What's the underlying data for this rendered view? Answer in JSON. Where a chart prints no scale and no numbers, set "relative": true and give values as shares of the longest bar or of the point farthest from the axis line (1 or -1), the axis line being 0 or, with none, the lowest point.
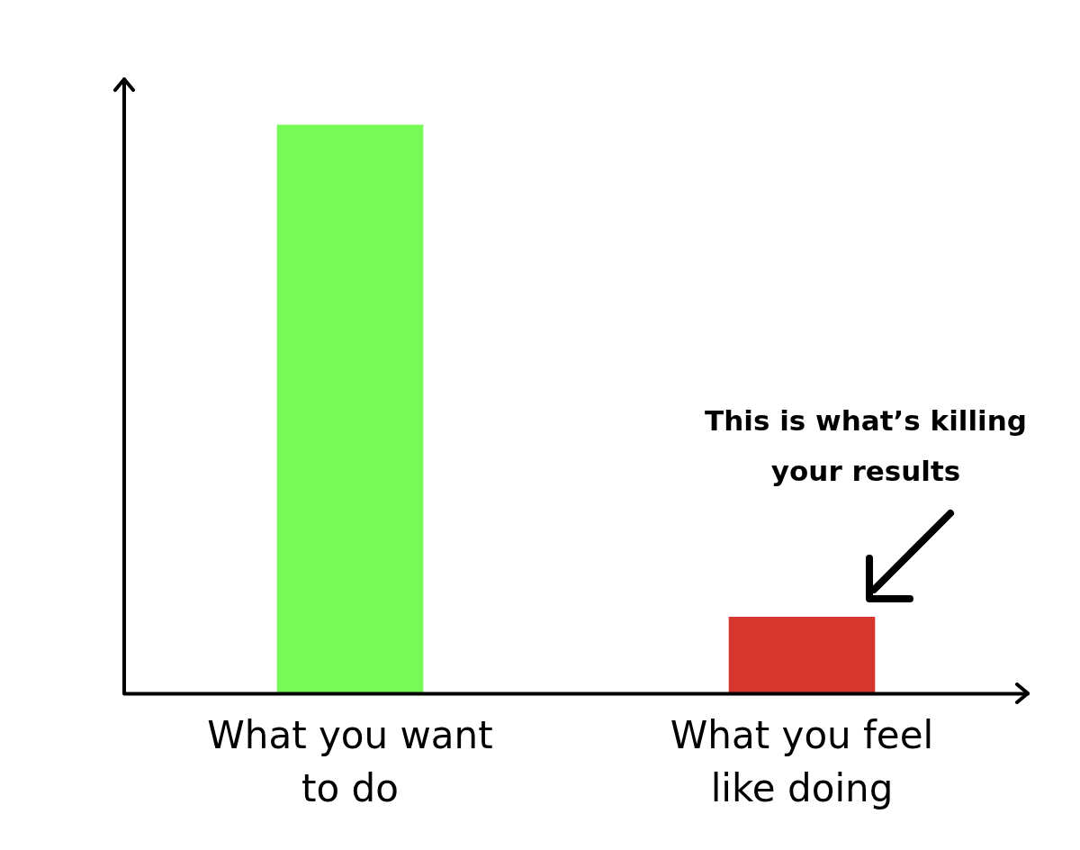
{
  "chart_data": {
    "type": "bar",
    "relative": true,
    "categories": [
      "What you want to do",
      "What you feel like doing"
    ],
    "colors": [
      "#76fb56",
      "#d6362e"
    ],
    "values": [
      1,
      0.135
    ],
    "annotations": [
      "This is what’s killing your results"
    ],
    "grid": false,
    "legend": false
  }
}
